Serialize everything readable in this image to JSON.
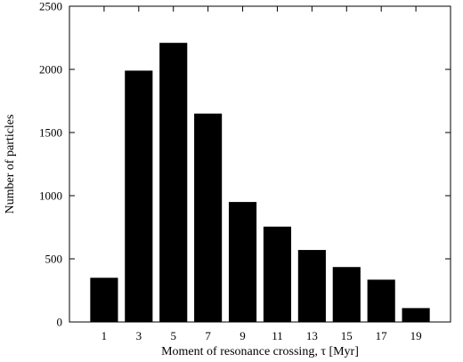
{
  "chart_data": {
    "type": "bar",
    "title": "",
    "xlabel": "Moment of resonance crossing, τ [Myr]",
    "ylabel": "Number of particles",
    "categories": [
      "1",
      "3",
      "5",
      "7",
      "9",
      "11",
      "13",
      "15",
      "17",
      "19"
    ],
    "x": [
      1,
      3,
      5,
      7,
      9,
      11,
      13,
      15,
      17,
      19
    ],
    "values": [
      350,
      1990,
      2210,
      1650,
      950,
      755,
      570,
      435,
      335,
      110
    ],
    "xlim": [
      -1,
      21
    ],
    "ylim": [
      0,
      2500
    ],
    "yticks": [
      0,
      500,
      1000,
      1500,
      2000,
      2500
    ],
    "ytick_labels": [
      "0",
      "500",
      "1000",
      "1500",
      "2000",
      "2500"
    ],
    "grid": false,
    "bar_color": "#000000"
  }
}
